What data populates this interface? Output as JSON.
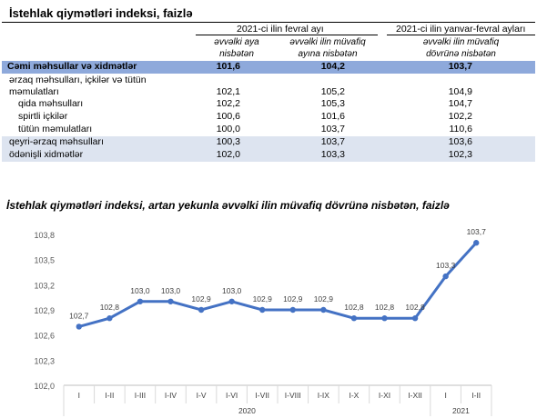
{
  "table": {
    "title": "İstehlak qiymətləri indeksi, faizlə",
    "group1": "2021-ci ilin fevral ayı",
    "group2": "2021-ci ilin yanvar-fevral ayları",
    "col1": [
      "əvvəlki aya",
      "nisbətən"
    ],
    "col2": [
      "əvvəlki ilin müvafiq",
      "ayına nisbətən"
    ],
    "col3": [
      "əvvəlki ilin müvafiq",
      "dövrünə nisbətən"
    ],
    "rows": [
      {
        "label": "Cəmi məhsullar və xidmətlər",
        "v1": "101,6",
        "v2": "104,2",
        "v3": "103,7"
      },
      {
        "label": "ərzaq məhsulları, içkilər və tütün",
        "label2": "məmulatları",
        "v1": "102,1",
        "v2": "105,2",
        "v3": "104,9"
      },
      {
        "label": "qida məhsulları",
        "v1": "102,2",
        "v2": "105,3",
        "v3": "104,7"
      },
      {
        "label": "spirtli içkilər",
        "v1": "100,6",
        "v2": "101,6",
        "v3": "102,2"
      },
      {
        "label": "tütün məmulatları",
        "v1": "100,0",
        "v2": "103,7",
        "v3": "110,6"
      },
      {
        "label": "qeyri-ərzaq məhsulları",
        "v1": "100,3",
        "v2": "103,7",
        "v3": "103,6"
      },
      {
        "label": "ödənişli xidmətlər",
        "v1": "102,0",
        "v2": "103,3",
        "v3": "102,3"
      }
    ]
  },
  "chart_data": {
    "type": "line",
    "title": "İstehlak qiymətləri indeksi, artan yekunla əvvəlki ilin müvafiq dövrünə nisbətən, faizlə",
    "categories": [
      "I",
      "I-II",
      "I-III",
      "I-IV",
      "I-V",
      "I-VI",
      "I-VII",
      "I-VIII",
      "I-IX",
      "I-X",
      "I-XI",
      "I-XII",
      "I",
      "I-II"
    ],
    "year_groups": [
      {
        "label": "2020",
        "count": 12
      },
      {
        "label": "2021",
        "count": 2
      }
    ],
    "values": [
      102.7,
      102.8,
      103.0,
      103.0,
      102.9,
      103.0,
      102.9,
      102.9,
      102.9,
      102.8,
      102.8,
      102.8,
      103.3,
      103.7
    ],
    "value_labels": [
      "102,7",
      "102,8",
      "103,0",
      "103,0",
      "102,9",
      "103,0",
      "102,9",
      "102,9",
      "102,9",
      "102,8",
      "102,8",
      "102,8",
      "103,3",
      "103,7"
    ],
    "ylim": [
      102.0,
      103.8
    ],
    "yticks": [
      "102,0",
      "102,3",
      "102,6",
      "102,9",
      "103,2",
      "103,5",
      "103,8"
    ],
    "ytick_values": [
      102.0,
      102.3,
      102.6,
      102.9,
      103.2,
      103.5,
      103.8
    ],
    "grid": false,
    "color": "#4472c4"
  }
}
